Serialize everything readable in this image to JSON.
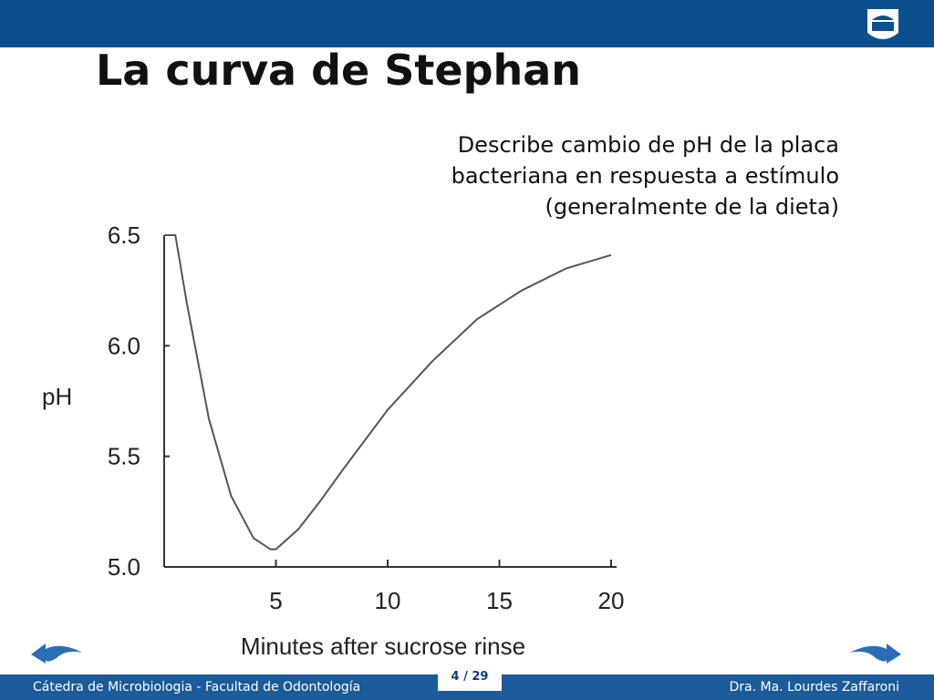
{
  "slide": {
    "title": "La curva de Stephan",
    "description": [
      "Describe cambio de pH de la placa",
      "bacteriana en respuesta a estímulo",
      "(generalmente de la dieta)"
    ],
    "footer_left": "Cátedra de Microbiologia - Facultad de Odontología",
    "page": "4 / 29",
    "footer_right": "Dra. Ma. Lourdes Zaffaroni"
  },
  "chart_data": {
    "type": "line",
    "x_label": "Minutes after sucrose rinse",
    "y_label": "pH",
    "x": [
      0,
      0.5,
      1,
      2,
      3,
      4,
      4.75,
      5,
      6,
      7,
      8,
      10,
      12,
      14,
      16,
      18,
      20
    ],
    "values": [
      6.5,
      6.5,
      6.2,
      5.67,
      5.32,
      5.13,
      5.08,
      5.08,
      5.17,
      5.3,
      5.44,
      5.71,
      5.93,
      6.12,
      6.25,
      6.35,
      6.41
    ],
    "color": "#555555",
    "xlim": [
      0,
      20
    ],
    "xticks": [
      5,
      10,
      15,
      20
    ],
    "ylim": [
      5,
      6.5
    ],
    "yticks": [
      {
        "value": 5,
        "label": "5.0"
      },
      5.5,
      {
        "value": 6,
        "label": "6.0"
      },
      6.5
    ]
  }
}
